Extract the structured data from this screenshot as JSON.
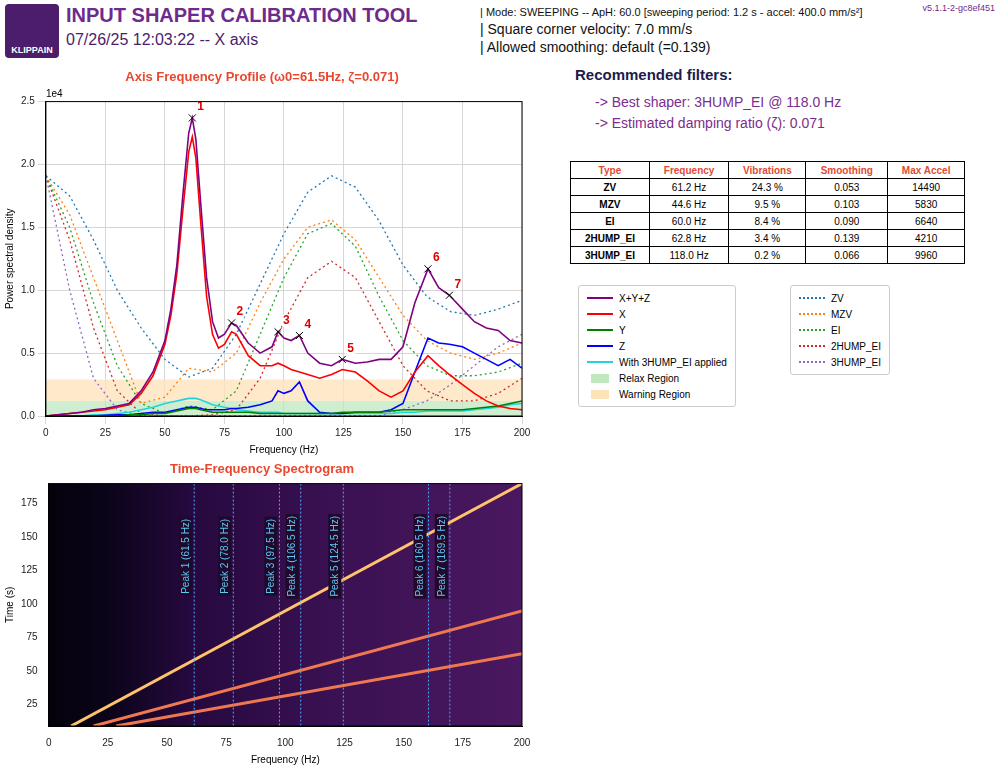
{
  "header": {
    "logo_text": "KLIPPAIN",
    "title": "INPUT SHAPER CALIBRATION TOOL",
    "subtitle": "07/26/25 12:03:22 -- X axis",
    "info": [
      "| Mode: SWEEPING -- ApH: 60.0 [sweeping period: 1.2 s - accel: 400.0 mm/s²]",
      "| Square corner velocity: 7.0 mm/s",
      "| Allowed smoothing: default (=0.139)"
    ],
    "version": "v5.1.1-2-gc8ef451"
  },
  "recommendations": {
    "title": "Recommended filters:",
    "items": [
      "-> Best shaper: 3HUMP_EI @ 118.0 Hz",
      "-> Estimated damping ratio (ζ): 0.071"
    ]
  },
  "table": {
    "columns": [
      "Type",
      "Frequency",
      "Vibrations",
      "Smoothing",
      "Max Accel"
    ],
    "rows": [
      [
        "ZV",
        "61.2 Hz",
        "24.3 %",
        "0.053",
        "14490"
      ],
      [
        "MZV",
        "44.6 Hz",
        "9.5 %",
        "0.103",
        "5830"
      ],
      [
        "EI",
        "60.0 Hz",
        "8.4 %",
        "0.090",
        "6640"
      ],
      [
        "2HUMP_EI",
        "62.8 Hz",
        "3.4 %",
        "0.139",
        "4210"
      ],
      [
        "3HUMP_EI",
        "118.0 Hz",
        "0.2 %",
        "0.066",
        "9960"
      ]
    ]
  },
  "chart_data": [
    {
      "type": "line",
      "title": "Axis Frequency Profile (ω0=61.5Hz, ζ=0.071)",
      "x_label": "Frequency (Hz)",
      "y_label": "Power spectral density",
      "y_multiplier_label": "1e4",
      "xlim": [
        0,
        200
      ],
      "xticks": [
        0,
        25,
        50,
        75,
        100,
        125,
        150,
        175,
        200
      ],
      "ylim": [
        0,
        2.5
      ],
      "yticks": [
        {
          "value": 0,
          "label": "0.0"
        },
        {
          "value": 0.5,
          "label": "0.5"
        },
        {
          "value": 1,
          "label": "1.0"
        },
        {
          "value": 1.5,
          "label": "1.5"
        },
        {
          "value": 2,
          "label": "2.0"
        },
        {
          "value": 2.5,
          "label": "2.5"
        }
      ],
      "grid": true,
      "legend": "right",
      "x": [
        0,
        5,
        10,
        15,
        20,
        25,
        30,
        35,
        40,
        45,
        50,
        52.5,
        55,
        57.5,
        60,
        61.5,
        63,
        65,
        67.5,
        70,
        72.5,
        75,
        78,
        80,
        85,
        90,
        95,
        97.5,
        100,
        103,
        106.5,
        110,
        115,
        120,
        124.5,
        130,
        135,
        140,
        145,
        150,
        155,
        160.5,
        165,
        169.5,
        175,
        180,
        185,
        190,
        195,
        200
      ],
      "series": [
        {
          "name": "X+Y+Z",
          "color": "#800080",
          "line_style": "solid",
          "values": [
            0,
            0.01,
            0.02,
            0.03,
            0.05,
            0.06,
            0.08,
            0.1,
            0.2,
            0.35,
            0.6,
            0.85,
            1.2,
            1.75,
            2.25,
            2.37,
            2.2,
            1.7,
            1.1,
            0.75,
            0.62,
            0.65,
            0.74,
            0.72,
            0.58,
            0.5,
            0.55,
            0.67,
            0.62,
            0.6,
            0.64,
            0.5,
            0.42,
            0.4,
            0.45,
            0.42,
            0.43,
            0.45,
            0.45,
            0.55,
            0.9,
            1.17,
            1.02,
            0.96,
            0.85,
            0.75,
            0.7,
            0.68,
            0.6,
            0.58
          ]
        },
        {
          "name": "X",
          "color": "#ff0000",
          "line_style": "solid",
          "values": [
            0,
            0.01,
            0.02,
            0.03,
            0.04,
            0.05,
            0.07,
            0.09,
            0.18,
            0.32,
            0.57,
            0.8,
            1.13,
            1.63,
            2.1,
            2.22,
            2.05,
            1.55,
            0.95,
            0.65,
            0.54,
            0.57,
            0.67,
            0.65,
            0.48,
            0.4,
            0.4,
            0.42,
            0.4,
            0.37,
            0.35,
            0.33,
            0.3,
            0.33,
            0.37,
            0.35,
            0.28,
            0.2,
            0.15,
            0.2,
            0.35,
            0.48,
            0.4,
            0.33,
            0.25,
            0.18,
            0.12,
            0.08,
            0.06,
            0.05
          ]
        },
        {
          "name": "Y",
          "color": "#008000",
          "line_style": "solid",
          "values": [
            0,
            0,
            0,
            0,
            0,
            0,
            0,
            0.01,
            0.01,
            0.02,
            0.02,
            0.03,
            0.04,
            0.05,
            0.06,
            0.06,
            0.06,
            0.05,
            0.04,
            0.03,
            0.03,
            0.03,
            0.03,
            0.03,
            0.03,
            0.02,
            0.02,
            0.02,
            0.02,
            0.02,
            0.02,
            0.02,
            0.02,
            0.02,
            0.03,
            0.03,
            0.03,
            0.03,
            0.04,
            0.05,
            0.05,
            0.05,
            0.05,
            0.05,
            0.05,
            0.06,
            0.07,
            0.08,
            0.1,
            0.12
          ]
        },
        {
          "name": "Z",
          "color": "#0000ff",
          "line_style": "solid",
          "values": [
            0,
            0,
            0,
            0,
            0,
            0.005,
            0.01,
            0.01,
            0.02,
            0.03,
            0.03,
            0.04,
            0.05,
            0.06,
            0.07,
            0.07,
            0.07,
            0.06,
            0.05,
            0.05,
            0.05,
            0.05,
            0.06,
            0.06,
            0.07,
            0.09,
            0.12,
            0.2,
            0.18,
            0.2,
            0.27,
            0.12,
            0.03,
            0.02,
            0.02,
            0.03,
            0.03,
            0.03,
            0.05,
            0.1,
            0.35,
            0.62,
            0.58,
            0.57,
            0.55,
            0.5,
            0.45,
            0.4,
            0.45,
            0.38
          ]
        },
        {
          "name": "With 3HUMP_EI applied",
          "color": "#22d3dc",
          "line_style": "solid",
          "values": [
            0,
            0,
            0,
            0,
            0.01,
            0.01,
            0.02,
            0.03,
            0.05,
            0.07,
            0.1,
            0.11,
            0.12,
            0.13,
            0.14,
            0.14,
            0.14,
            0.13,
            0.11,
            0.09,
            0.08,
            0.07,
            0.06,
            0.05,
            0.04,
            0.03,
            0.03,
            0.03,
            0.02,
            0.02,
            0.02,
            0.02,
            0.02,
            0.02,
            0.02,
            0.02,
            0.02,
            0.02,
            0.02,
            0.03,
            0.03,
            0.04,
            0.04,
            0.04,
            0.04,
            0.05,
            0.06,
            0.07,
            0.09,
            0.1
          ]
        },
        {
          "name": "ZV",
          "color": "#1f77b4",
          "line_style": "dotted",
          "x": [
            0,
            10,
            20,
            30,
            40,
            50,
            60,
            70,
            80,
            90,
            100,
            110,
            120,
            130,
            140,
            150,
            160,
            170,
            180,
            190,
            200
          ],
          "values": [
            1.91,
            1.75,
            1.4,
            1.0,
            0.7,
            0.45,
            0.31,
            0.38,
            0.65,
            1.05,
            1.45,
            1.78,
            1.91,
            1.82,
            1.55,
            1.2,
            0.95,
            0.83,
            0.8,
            0.85,
            0.92
          ]
        },
        {
          "name": "MZV",
          "color": "#ff7f0e",
          "line_style": "dotted",
          "x": [
            0,
            10,
            20,
            30,
            40,
            50,
            60,
            70,
            80,
            90,
            100,
            110,
            120,
            130,
            140,
            150,
            160,
            170,
            180,
            190,
            200
          ],
          "values": [
            1.91,
            1.6,
            1.1,
            0.6,
            0.1,
            0.15,
            0.38,
            0.35,
            0.5,
            0.9,
            1.25,
            1.5,
            1.56,
            1.4,
            1.1,
            0.8,
            0.6,
            0.5,
            0.45,
            0.5,
            0.58
          ]
        },
        {
          "name": "EI",
          "color": "#2ca02c",
          "line_style": "dotted",
          "x": [
            0,
            10,
            20,
            30,
            40,
            50,
            60,
            70,
            80,
            90,
            100,
            110,
            120,
            130,
            140,
            150,
            160,
            170,
            180,
            190,
            200
          ],
          "values": [
            1.91,
            1.5,
            0.9,
            0.4,
            0.1,
            0.02,
            0.08,
            0.05,
            0.2,
            0.65,
            1.1,
            1.45,
            1.53,
            1.35,
            0.95,
            0.6,
            0.4,
            0.32,
            0.32,
            0.35,
            0.42
          ]
        },
        {
          "name": "2HUMP_EI",
          "color": "#d62728",
          "line_style": "dotted",
          "x": [
            0,
            10,
            20,
            30,
            40,
            50,
            60,
            70,
            80,
            90,
            100,
            110,
            120,
            130,
            140,
            150,
            160,
            170,
            180,
            190,
            200
          ],
          "values": [
            1.91,
            1.4,
            0.7,
            0.2,
            0.02,
            0,
            0,
            0.01,
            0.05,
            0.3,
            0.75,
            1.1,
            1.23,
            1.1,
            0.75,
            0.4,
            0.2,
            0.12,
            0.12,
            0.18,
            0.3
          ]
        },
        {
          "name": "3HUMP_EI",
          "color": "#9467bd",
          "line_style": "dotted",
          "x": [
            0,
            10,
            20,
            30,
            40,
            50,
            60,
            70,
            80,
            90,
            100,
            110,
            120,
            130,
            140,
            150,
            160,
            170,
            180,
            190,
            200
          ],
          "values": [
            1.91,
            1.0,
            0.3,
            0.05,
            0,
            0,
            0,
            0,
            0,
            0,
            0,
            0,
            0,
            0,
            0,
            0.05,
            0.12,
            0.25,
            0.4,
            0.55,
            0.65
          ]
        }
      ],
      "regions": [
        {
          "name": "Relax Region",
          "color": "#bfe8bf",
          "range": [
            0,
            0.12
          ]
        },
        {
          "name": "Warning Region",
          "color": "#fde3b8",
          "range": [
            0.12,
            0.29
          ]
        }
      ],
      "peaks": [
        {
          "label": "1",
          "x": 61.5,
          "y": 2.37
        },
        {
          "label": "2",
          "x": 78,
          "y": 0.74
        },
        {
          "label": "3",
          "x": 97.5,
          "y": 0.67
        },
        {
          "label": "4",
          "x": 106.5,
          "y": 0.64
        },
        {
          "label": "5",
          "x": 124.5,
          "y": 0.45
        },
        {
          "label": "6",
          "x": 160.5,
          "y": 1.17
        },
        {
          "label": "7",
          "x": 169.5,
          "y": 0.96
        }
      ]
    },
    {
      "type": "line",
      "title": "Time-Frequency Spectrogram",
      "x_label": "Frequency (Hz)",
      "y_label": "Time (s)",
      "xlim": [
        0,
        200
      ],
      "xticks": [
        0,
        25,
        50,
        75,
        100,
        125,
        150,
        175,
        200
      ],
      "ylim": [
        9,
        190
      ],
      "yticks": [
        25,
        50,
        75,
        100,
        125,
        150,
        175
      ],
      "grid": false,
      "series": [
        {
          "color": "#ffc46b",
          "x": [
            9.5,
            200
          ],
          "values": [
            9,
            190
          ]
        },
        {
          "color": "#f07850",
          "x": [
            19,
            200
          ],
          "values": [
            9,
            95
          ]
        },
        {
          "color": "#f07850",
          "x": [
            28.5,
            200
          ],
          "values": [
            9,
            63
          ]
        }
      ],
      "markers": [
        {
          "x": 61.5,
          "label": "Peak 1 (61.5 Hz)"
        },
        {
          "x": 78,
          "label": "Peak 2 (78.0 Hz)"
        },
        {
          "x": 97.5,
          "label": "Peak 3 (97.5 Hz)"
        },
        {
          "x": 106.5,
          "label": "Peak 4 (106.5 Hz)"
        },
        {
          "x": 124.5,
          "label": "Peak 5 (124.5 Hz)"
        },
        {
          "x": 160.5,
          "label": "Peak 6 (160.5 Hz)"
        },
        {
          "x": 169.5,
          "label": "Peak 7 (169.5 Hz)"
        }
      ]
    }
  ]
}
